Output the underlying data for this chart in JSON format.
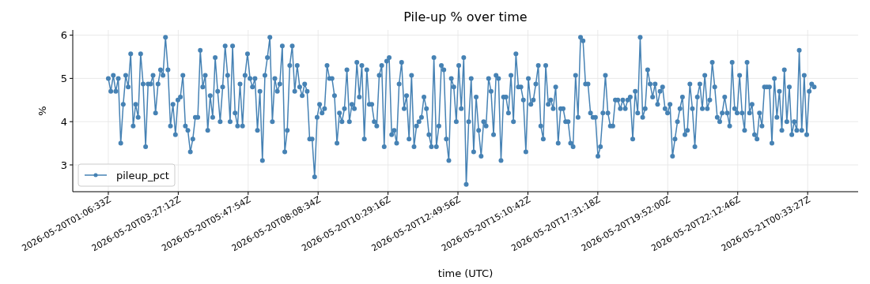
{
  "chart_data": {
    "type": "line",
    "title": "Pile-up % over time",
    "xlabel": "time (UTC)",
    "ylabel": "%",
    "x": [
      "2026-05-20T01:06:33",
      "2026-05-20T01:11:33",
      "2026-05-20T01:16:33",
      "2026-05-20T01:21:33",
      "2026-05-20T01:26:33",
      "2026-05-20T01:31:33",
      "2026-05-20T01:36:33",
      "2026-05-20T01:41:33",
      "2026-05-20T01:46:33",
      "2026-05-20T01:51:33",
      "2026-05-20T01:56:33",
      "2026-05-20T02:01:33",
      "2026-05-20T02:06:33",
      "2026-05-20T02:11:33",
      "2026-05-20T02:16:33",
      "2026-05-20T02:21:33",
      "2026-05-20T02:26:33",
      "2026-05-20T02:31:33",
      "2026-05-20T02:36:33",
      "2026-05-20T02:41:33",
      "2026-05-20T02:46:33",
      "2026-05-20T02:51:33",
      "2026-05-20T02:56:33",
      "2026-05-20T03:01:33",
      "2026-05-20T03:06:33",
      "2026-05-20T03:11:33",
      "2026-05-20T03:16:33",
      "2026-05-20T03:21:33",
      "2026-05-20T03:26:33",
      "2026-05-20T03:31:33",
      "2026-05-20T03:36:33",
      "2026-05-20T03:41:33",
      "2026-05-20T03:46:33",
      "2026-05-20T03:51:33",
      "2026-05-20T03:56:33",
      "2026-05-20T04:01:33",
      "2026-05-20T04:06:33",
      "2026-05-20T04:11:33",
      "2026-05-20T04:16:33",
      "2026-05-20T04:21:33",
      "2026-05-20T04:26:33",
      "2026-05-20T04:31:33",
      "2026-05-20T04:36:33",
      "2026-05-20T04:41:33",
      "2026-05-20T04:46:33",
      "2026-05-20T04:51:33",
      "2026-05-20T04:56:33",
      "2026-05-20T05:01:33",
      "2026-05-20T05:06:33",
      "2026-05-20T05:11:33",
      "2026-05-20T05:16:33",
      "2026-05-20T05:21:33",
      "2026-05-20T05:26:33",
      "2026-05-20T05:31:33",
      "2026-05-20T05:36:33",
      "2026-05-20T05:41:33",
      "2026-05-20T05:46:33",
      "2026-05-20T05:51:33",
      "2026-05-20T05:56:33",
      "2026-05-20T06:01:33",
      "2026-05-20T06:06:33",
      "2026-05-20T06:11:33",
      "2026-05-20T06:16:33",
      "2026-05-20T06:21:33",
      "2026-05-20T06:26:33",
      "2026-05-20T06:31:33",
      "2026-05-20T06:36:33",
      "2026-05-20T06:41:33",
      "2026-05-20T06:46:33",
      "2026-05-20T06:51:33",
      "2026-05-20T06:56:33",
      "2026-05-20T07:01:33",
      "2026-05-20T07:06:33",
      "2026-05-20T07:11:33",
      "2026-05-20T07:16:33",
      "2026-05-20T07:21:33",
      "2026-05-20T07:26:33",
      "2026-05-20T07:31:33",
      "2026-05-20T07:36:33",
      "2026-05-20T07:41:33",
      "2026-05-20T07:46:33",
      "2026-05-20T07:51:33",
      "2026-05-20T07:56:33",
      "2026-05-20T08:01:33",
      "2026-05-20T08:06:33",
      "2026-05-20T08:11:33",
      "2026-05-20T08:16:33",
      "2026-05-20T08:21:33",
      "2026-05-20T08:26:33",
      "2026-05-20T08:31:33",
      "2026-05-20T08:36:33",
      "2026-05-20T08:41:33",
      "2026-05-20T08:46:33",
      "2026-05-20T08:51:33",
      "2026-05-20T08:56:33",
      "2026-05-20T09:01:33",
      "2026-05-20T09:06:33",
      "2026-05-20T09:11:33",
      "2026-05-20T09:16:33",
      "2026-05-20T09:21:33",
      "2026-05-20T09:26:33",
      "2026-05-20T09:31:33",
      "2026-05-20T09:36:33",
      "2026-05-20T09:41:33",
      "2026-05-20T09:46:33",
      "2026-05-20T09:51:33",
      "2026-05-20T09:56:33",
      "2026-05-20T10:01:33",
      "2026-05-20T10:06:33",
      "2026-05-20T10:11:33",
      "2026-05-20T10:16:33",
      "2026-05-20T10:21:33",
      "2026-05-20T10:26:33",
      "2026-05-20T10:31:33",
      "2026-05-20T10:36:33",
      "2026-05-20T10:41:33",
      "2026-05-20T10:46:33",
      "2026-05-20T10:51:33",
      "2026-05-20T10:56:33",
      "2026-05-20T11:01:33",
      "2026-05-20T11:06:33",
      "2026-05-20T11:11:33",
      "2026-05-20T11:16:33",
      "2026-05-20T11:21:33",
      "2026-05-20T11:26:33",
      "2026-05-20T11:31:33",
      "2026-05-20T11:36:33",
      "2026-05-20T11:41:33",
      "2026-05-20T11:46:33",
      "2026-05-20T11:51:33",
      "2026-05-20T11:56:33",
      "2026-05-20T12:01:33",
      "2026-05-20T12:06:33",
      "2026-05-20T12:11:33",
      "2026-05-20T12:16:33",
      "2026-05-20T12:21:33",
      "2026-05-20T12:26:33",
      "2026-05-20T12:31:33",
      "2026-05-20T12:36:33",
      "2026-05-20T12:41:33",
      "2026-05-20T12:46:33",
      "2026-05-20T12:51:33",
      "2026-05-20T12:56:33",
      "2026-05-20T13:01:33",
      "2026-05-20T13:06:33",
      "2026-05-20T13:11:33",
      "2026-05-20T13:16:33",
      "2026-05-20T13:21:33",
      "2026-05-20T13:26:33",
      "2026-05-20T13:31:33",
      "2026-05-20T13:36:33",
      "2026-05-20T13:41:33",
      "2026-05-20T13:46:33",
      "2026-05-20T13:51:33",
      "2026-05-20T13:56:33",
      "2026-05-20T14:01:33",
      "2026-05-20T14:06:33",
      "2026-05-20T14:11:33",
      "2026-05-20T14:16:33",
      "2026-05-20T14:21:33",
      "2026-05-20T14:26:33",
      "2026-05-20T14:31:33",
      "2026-05-20T14:36:33",
      "2026-05-20T14:41:33",
      "2026-05-20T14:46:33",
      "2026-05-20T14:51:33",
      "2026-05-20T14:56:33",
      "2026-05-20T15:01:33",
      "2026-05-20T15:06:33",
      "2026-05-20T15:11:33",
      "2026-05-20T15:16:33",
      "2026-05-20T15:21:33",
      "2026-05-20T15:26:33",
      "2026-05-20T15:31:33",
      "2026-05-20T15:36:33",
      "2026-05-20T15:41:33",
      "2026-05-20T15:46:33",
      "2026-05-20T15:51:33",
      "2026-05-20T15:56:33",
      "2026-05-20T16:01:33",
      "2026-05-20T16:06:33",
      "2026-05-20T16:11:33",
      "2026-05-20T16:16:33",
      "2026-05-20T16:21:33",
      "2026-05-20T16:26:33",
      "2026-05-20T16:31:33",
      "2026-05-20T16:36:33",
      "2026-05-20T16:41:33",
      "2026-05-20T16:46:33",
      "2026-05-20T16:51:33",
      "2026-05-20T16:56:33",
      "2026-05-20T17:01:33",
      "2026-05-20T17:06:33",
      "2026-05-20T17:11:33",
      "2026-05-20T17:16:33",
      "2026-05-20T17:21:33",
      "2026-05-20T17:26:33",
      "2026-05-20T17:31:33",
      "2026-05-20T17:36:33",
      "2026-05-20T17:41:33",
      "2026-05-20T17:46:33",
      "2026-05-20T17:51:33",
      "2026-05-20T17:56:33",
      "2026-05-20T18:01:33",
      "2026-05-20T18:06:33",
      "2026-05-20T18:11:33",
      "2026-05-20T18:16:33",
      "2026-05-20T18:21:33",
      "2026-05-20T18:26:33",
      "2026-05-20T18:31:33",
      "2026-05-20T18:36:33",
      "2026-05-20T18:41:33",
      "2026-05-20T18:46:33",
      "2026-05-20T18:51:33",
      "2026-05-20T18:56:33",
      "2026-05-20T19:01:33",
      "2026-05-20T19:06:33",
      "2026-05-20T19:11:33",
      "2026-05-20T19:16:33",
      "2026-05-20T19:21:33",
      "2026-05-20T19:26:33",
      "2026-05-20T19:31:33",
      "2026-05-20T19:36:33",
      "2026-05-20T19:41:33",
      "2026-05-20T19:46:33",
      "2026-05-20T19:51:33",
      "2026-05-20T19:56:33",
      "2026-05-20T20:01:33",
      "2026-05-20T20:06:33",
      "2026-05-20T20:11:33",
      "2026-05-20T20:16:33",
      "2026-05-20T20:21:33",
      "2026-05-20T20:26:33",
      "2026-05-20T20:31:33",
      "2026-05-20T20:36:33",
      "2026-05-20T20:41:33",
      "2026-05-20T20:46:33",
      "2026-05-20T20:51:33",
      "2026-05-20T20:56:33",
      "2026-05-20T21:01:33",
      "2026-05-20T21:06:33",
      "2026-05-20T21:11:33",
      "2026-05-20T21:16:33",
      "2026-05-20T21:21:33",
      "2026-05-20T21:26:33",
      "2026-05-20T21:31:33",
      "2026-05-20T21:36:33",
      "2026-05-20T21:41:33",
      "2026-05-20T21:46:33",
      "2026-05-20T21:51:33",
      "2026-05-20T21:56:33",
      "2026-05-20T22:01:33",
      "2026-05-20T22:06:33",
      "2026-05-20T22:11:33",
      "2026-05-20T22:16:33",
      "2026-05-20T22:21:33",
      "2026-05-20T22:26:33",
      "2026-05-20T22:31:33",
      "2026-05-20T22:36:33",
      "2026-05-20T22:41:33",
      "2026-05-20T22:46:33",
      "2026-05-20T22:51:33",
      "2026-05-20T22:56:33",
      "2026-05-20T23:01:33",
      "2026-05-20T23:06:33",
      "2026-05-20T23:11:33",
      "2026-05-20T23:16:33",
      "2026-05-20T23:21:33",
      "2026-05-20T23:26:33",
      "2026-05-20T23:31:33",
      "2026-05-20T23:36:33",
      "2026-05-20T23:41:33",
      "2026-05-20T23:46:33",
      "2026-05-20T23:51:33",
      "2026-05-20T23:56:33",
      "2026-05-21T00:01:33",
      "2026-05-21T00:06:33",
      "2026-05-21T00:11:33",
      "2026-05-21T00:16:33",
      "2026-05-21T00:21:33",
      "2026-05-21T00:26:33",
      "2026-05-21T00:31:33",
      "2026-05-21T00:36:33",
      "2026-05-21T00:41:33",
      "2026-05-21T00:46:33"
    ],
    "series": [
      {
        "name": "pileup_pct",
        "color": "#4682b4",
        "values": [
          5.0,
          4.7,
          5.07,
          4.7,
          5.0,
          3.5,
          4.4,
          5.07,
          4.8,
          5.57,
          3.9,
          4.4,
          4.1,
          5.57,
          4.87,
          3.42,
          4.87,
          4.87,
          5.07,
          4.2,
          4.87,
          5.2,
          5.07,
          5.95,
          5.2,
          3.9,
          4.4,
          3.7,
          4.5,
          4.57,
          5.07,
          3.9,
          3.8,
          3.3,
          3.6,
          4.1,
          4.1,
          5.65,
          4.8,
          5.07,
          3.8,
          4.6,
          4.1,
          5.48,
          4.7,
          4.0,
          4.8,
          5.75,
          5.07,
          4.0,
          5.75,
          4.2,
          3.9,
          4.87,
          3.9,
          5.07,
          5.57,
          5.0,
          4.8,
          5.0,
          3.8,
          4.7,
          3.1,
          5.07,
          5.48,
          5.95,
          4.0,
          5.0,
          4.7,
          4.87,
          5.75,
          3.3,
          3.8,
          5.3,
          5.75,
          4.7,
          5.3,
          4.8,
          4.6,
          4.87,
          4.7,
          3.6,
          3.6,
          2.72,
          4.1,
          4.4,
          4.2,
          4.3,
          5.3,
          5.0,
          5.0,
          4.6,
          3.5,
          4.2,
          4.0,
          4.3,
          5.2,
          4.0,
          4.4,
          4.3,
          5.37,
          4.57,
          5.3,
          3.6,
          5.2,
          4.4,
          4.4,
          4.0,
          3.9,
          5.07,
          5.3,
          3.42,
          5.4,
          5.48,
          3.7,
          3.8,
          3.5,
          4.87,
          5.37,
          4.3,
          4.6,
          3.6,
          5.07,
          3.42,
          3.9,
          4.0,
          4.1,
          4.57,
          4.3,
          3.7,
          3.42,
          5.48,
          3.42,
          3.9,
          5.3,
          5.2,
          3.6,
          3.1,
          5.0,
          4.8,
          4.0,
          5.3,
          4.3,
          5.48,
          2.55,
          4.0,
          5.0,
          3.3,
          4.57,
          3.8,
          3.2,
          4.0,
          3.9,
          5.0,
          4.7,
          3.7,
          5.07,
          5.0,
          3.1,
          4.57,
          4.57,
          4.2,
          5.07,
          4.0,
          5.57,
          4.8,
          4.8,
          4.5,
          3.3,
          5.0,
          4.4,
          4.5,
          4.87,
          5.3,
          3.9,
          3.6,
          5.3,
          4.4,
          4.5,
          4.3,
          4.8,
          3.5,
          4.3,
          4.3,
          4.0,
          4.0,
          3.5,
          3.42,
          5.07,
          4.1,
          5.95,
          5.87,
          4.87,
          4.87,
          4.2,
          4.1,
          4.1,
          3.2,
          3.42,
          4.2,
          5.07,
          4.2,
          3.9,
          3.9,
          4.5,
          4.5,
          4.3,
          4.5,
          4.3,
          4.5,
          4.57,
          3.6,
          4.7,
          4.2,
          5.95,
          4.1,
          4.3,
          5.2,
          4.87,
          4.57,
          4.87,
          4.4,
          4.7,
          4.8,
          4.3,
          4.2,
          4.4,
          3.2,
          3.6,
          4.0,
          4.3,
          4.57,
          3.7,
          3.8,
          4.87,
          4.3,
          3.42,
          4.57,
          4.87,
          4.3,
          5.07,
          4.3,
          4.5,
          5.37,
          4.8,
          4.1,
          4.0,
          4.2,
          4.57,
          4.2,
          3.9,
          5.37,
          4.3,
          4.2,
          5.07,
          4.2,
          3.8,
          5.37,
          4.2,
          4.4,
          3.7,
          3.6,
          4.2,
          3.9,
          4.8,
          4.8,
          4.8,
          3.5,
          5.0,
          4.1,
          4.7,
          3.8,
          5.2,
          4.0,
          4.8,
          3.7,
          4.0,
          3.8,
          5.65,
          3.8,
          5.07,
          3.7,
          4.7,
          4.87,
          4.8
        ]
      }
    ],
    "xlim": [
      "2026-05-19T23:55:00",
      "2026-05-21T02:15:00"
    ],
    "xticks": [
      {
        "value": "2026-05-20T01:06:33",
        "label": "2026-05-20T01:06:33Z"
      },
      {
        "value": "2026-05-20T03:27:12",
        "label": "2026-05-20T03:27:12Z"
      },
      {
        "value": "2026-05-20T05:47:54",
        "label": "2026-05-20T05:47:54Z"
      },
      {
        "value": "2026-05-20T08:08:34",
        "label": "2026-05-20T08:08:34Z"
      },
      {
        "value": "2026-05-20T10:29:16",
        "label": "2026-05-20T10:29:16Z"
      },
      {
        "value": "2026-05-20T12:49:56",
        "label": "2026-05-20T12:49:56Z"
      },
      {
        "value": "2026-05-20T15:10:42",
        "label": "2026-05-20T15:10:42Z"
      },
      {
        "value": "2026-05-20T17:31:18",
        "label": "2026-05-20T17:31:18Z"
      },
      {
        "value": "2026-05-20T19:52:00",
        "label": "2026-05-20T19:52:00Z"
      },
      {
        "value": "2026-05-20T22:12:46",
        "label": "2026-05-20T22:12:46Z"
      },
      {
        "value": "2026-05-21T00:33:27",
        "label": "2026-05-21T00:33:27Z"
      }
    ],
    "ylim": [
      2.38,
      6.12
    ],
    "yticks": [
      3,
      4,
      5,
      6
    ],
    "grid": true,
    "legend": "bottom left",
    "marker": "circle",
    "line_style": "solid"
  }
}
